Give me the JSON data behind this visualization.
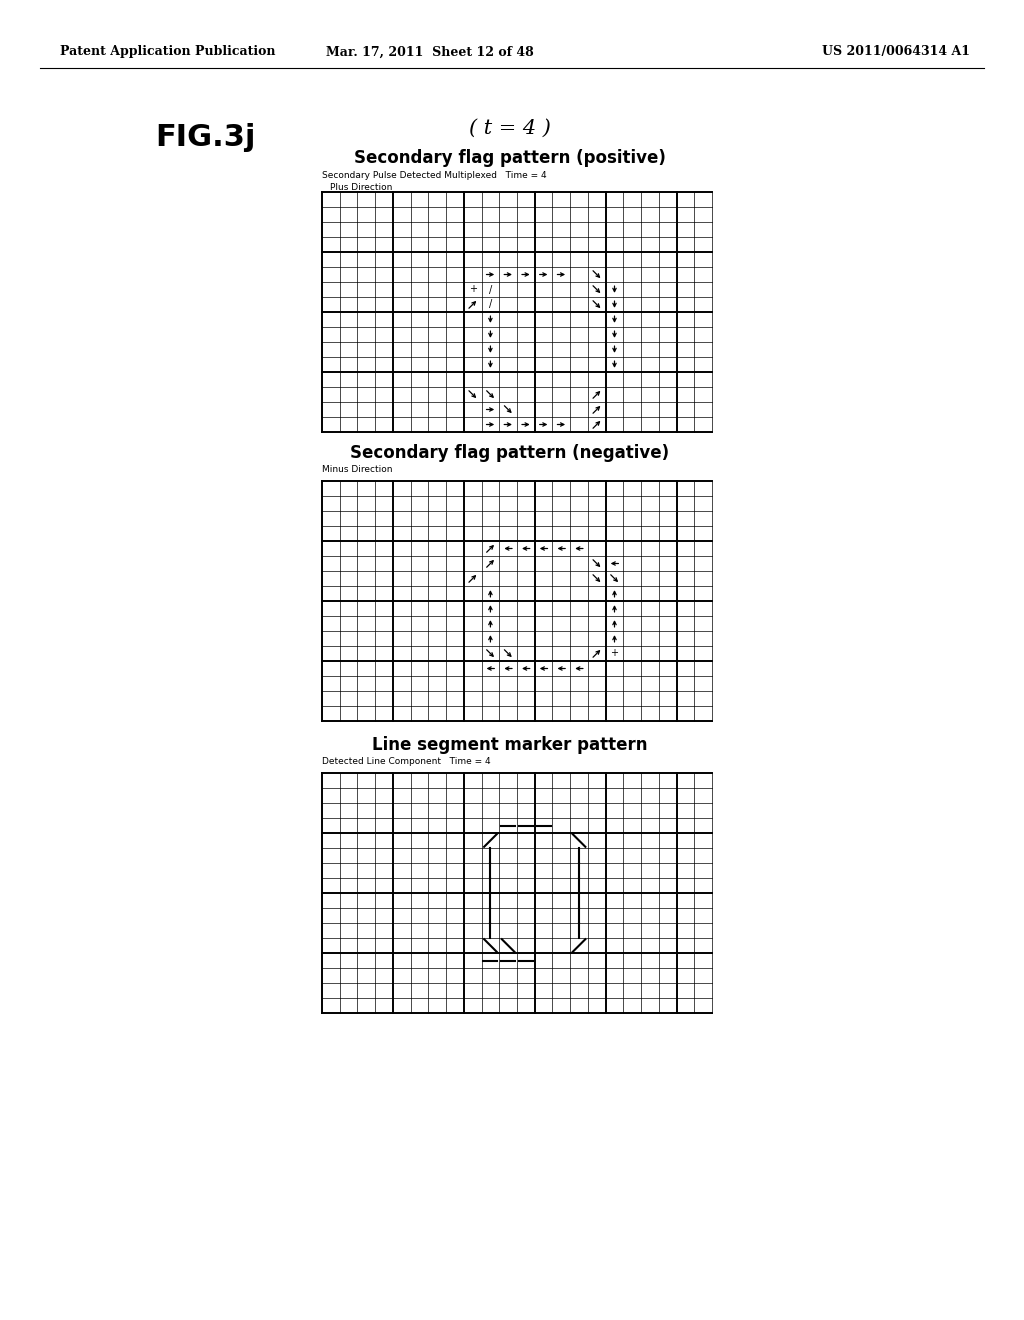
{
  "header_left": "Patent Application Publication",
  "header_mid": "Mar. 17, 2011  Sheet 12 of 48",
  "header_right": "US 2011/0064314 A1",
  "fig_label": "FIG.3j",
  "time_label": "( t = 4 )",
  "panel1_title": "Secondary flag pattern (positive)",
  "panel1_sub1": "Secondary Pulse Detected Multiplexed   Time = 4",
  "panel1_sub2": "Plus Direction",
  "panel2_title": "Secondary flag pattern (negative)",
  "panel2_sub1": "Minus Direction",
  "panel3_title": "Line segment marker pattern",
  "panel3_sub1": "Detected Line Component   Time = 4",
  "bg_color": "#ffffff"
}
